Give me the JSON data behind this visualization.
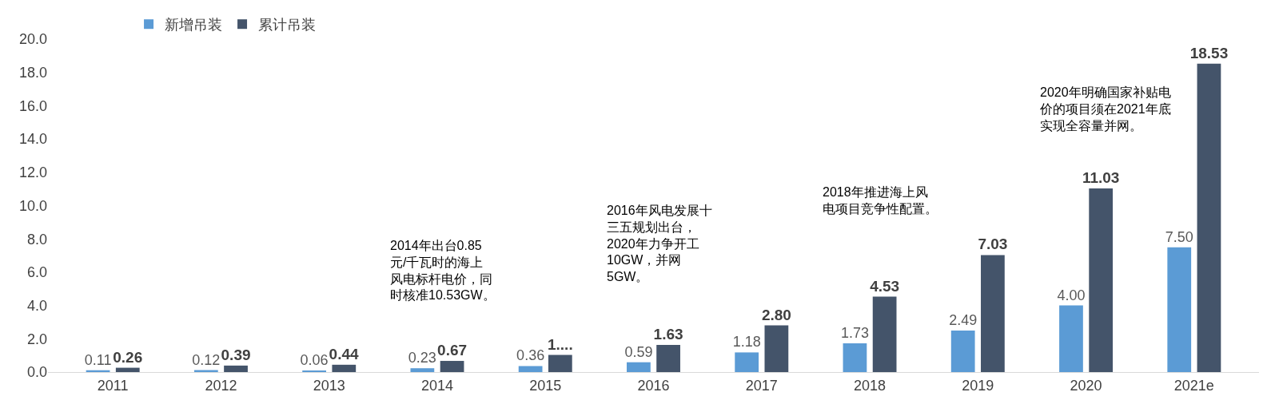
{
  "chart_data": {
    "type": "bar",
    "categories": [
      "2011",
      "2012",
      "2013",
      "2014",
      "2015",
      "2016",
      "2017",
      "2018",
      "2019",
      "2020",
      "2021e"
    ],
    "series": [
      {
        "name": "新增吊装",
        "color": "#5b9bd5",
        "values": [
          0.11,
          0.12,
          0.06,
          0.23,
          0.36,
          0.59,
          1.18,
          1.73,
          2.49,
          4.0,
          7.5
        ],
        "value_labels": [
          "0.11",
          "0.12",
          "0.06",
          "0.23",
          "0.36",
          "0.59",
          "1.18",
          "1.73",
          "2.49",
          "4.00",
          "7.50"
        ]
      },
      {
        "name": "累计吊装",
        "color": "#44546a",
        "values": [
          0.26,
          0.39,
          0.44,
          0.67,
          1.03,
          1.63,
          2.8,
          4.53,
          7.03,
          11.03,
          18.53
        ],
        "value_labels": [
          "0.26",
          "0.39",
          "0.44",
          "0.67",
          "1....",
          "1.63",
          "2.80",
          "4.53",
          "7.03",
          "11.03",
          "18.53"
        ]
      }
    ],
    "ylim": [
      0,
      20
    ],
    "yticks": [
      {
        "value": 0,
        "label": "0.0"
      },
      {
        "value": 2,
        "label": "2.0"
      },
      {
        "value": 4,
        "label": "4.0"
      },
      {
        "value": 6,
        "label": "6.0"
      },
      {
        "value": 8,
        "label": "8.0"
      },
      {
        "value": 10,
        "label": "10.0"
      },
      {
        "value": 12,
        "label": "12.0"
      },
      {
        "value": 14,
        "label": "14.0"
      },
      {
        "value": 16,
        "label": "16.0"
      },
      {
        "value": 18,
        "label": "18.0"
      },
      {
        "value": 20,
        "label": "20.0"
      }
    ],
    "legend": "top left",
    "annotations": [
      "2014年出台0.85元/千瓦时的海上风电标杆电价，同时核准10.53GW。",
      "2016年风电发展十三五规划出台，2020年力争开工10GW，并网5GW。",
      "2018年推进海上风电项目竞争性配置。",
      "2020年明确国家补贴电价的项目须在2021年底实现全容量并网。"
    ]
  }
}
